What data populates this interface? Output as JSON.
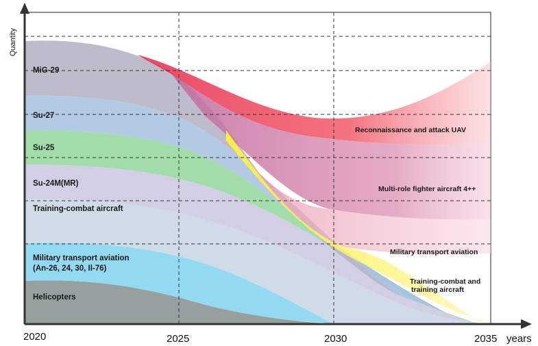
{
  "chart_data": {
    "type": "area",
    "ylabel": "Quantity",
    "xlabel": "years",
    "x_ticks": [
      "2020",
      "2025",
      "2030",
      "2035"
    ],
    "xlim": [
      2020,
      2035
    ],
    "grid": true,
    "retiring_series": [
      {
        "name": "MiG-29",
        "color": "#b9b6c6"
      },
      {
        "name": "Su-27",
        "color": "#a9c3df"
      },
      {
        "name": "Su-25",
        "color": "#9ed7a4"
      },
      {
        "name": "Su-24M(MR)",
        "color": "#c9c5dd"
      },
      {
        "name": "Training-combat aircraft",
        "color": "#c6d4e2"
      },
      {
        "name": "Military transport aviation\n(An-26, 24, 30, Il-76)",
        "color": "#7fd1ee"
      },
      {
        "name": "Helicopters",
        "color": "#8a9592"
      }
    ],
    "new_series": [
      {
        "name": "Reconnaissance and attack UAV",
        "color": "#ef3b52"
      },
      {
        "name": "Multi-role fighter aircraft 4++",
        "color": "#d98aae"
      },
      {
        "name": "Military transport aviation",
        "color": "#f2a8b6"
      },
      {
        "name": "Training-combat and\ntraining aircraft",
        "color": "#fbef4c"
      }
    ]
  }
}
